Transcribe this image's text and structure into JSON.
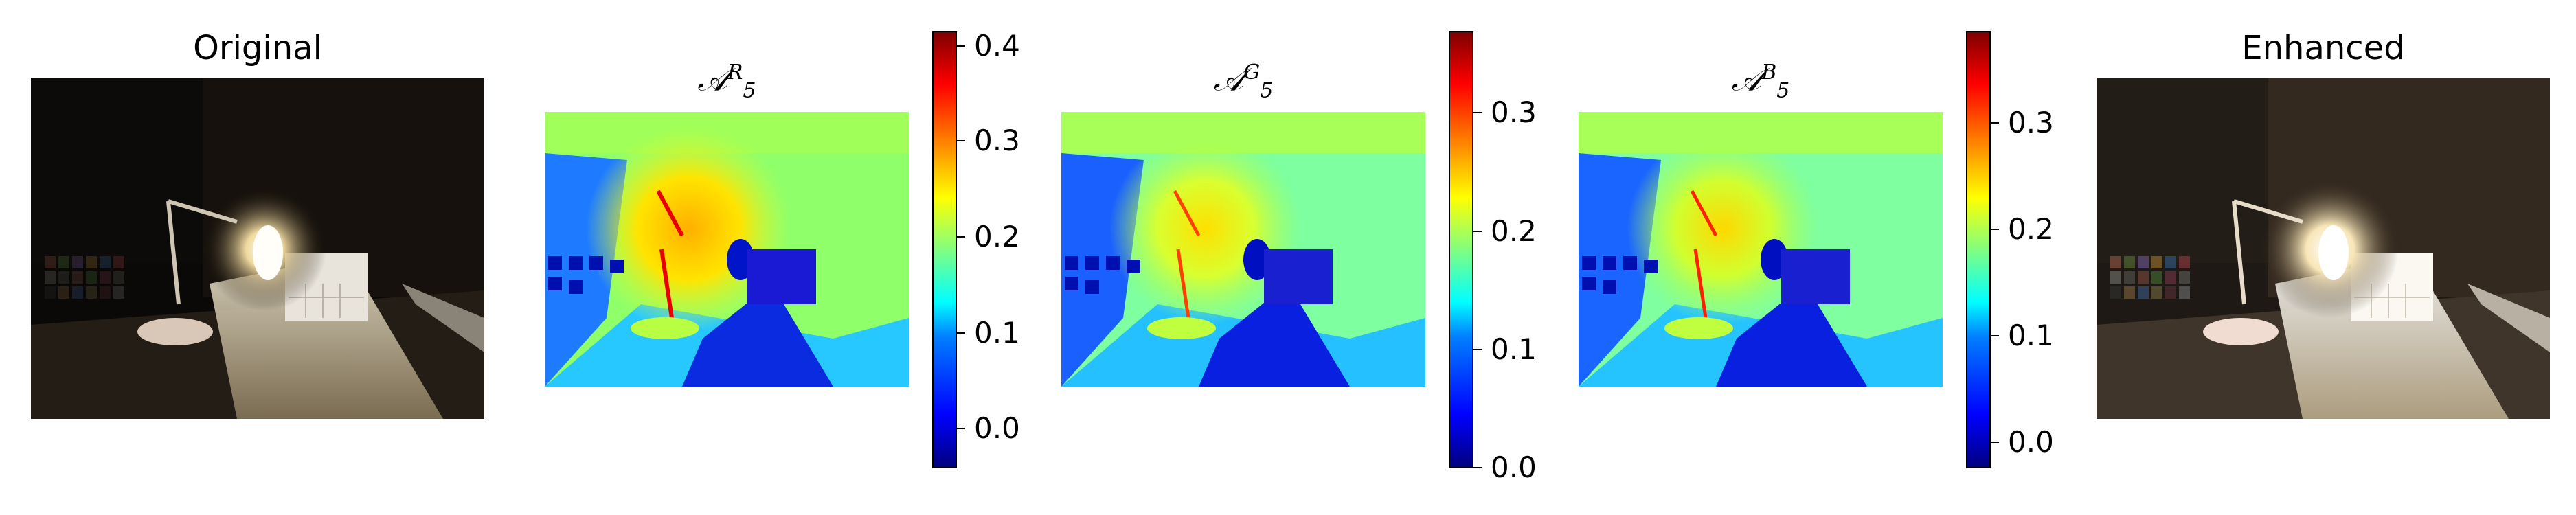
{
  "panels": {
    "original": {
      "title": "Original"
    },
    "map_r": {
      "symbol": "𝒜",
      "sub": "5",
      "sup": "R"
    },
    "map_g": {
      "symbol": "𝒜",
      "sub": "5",
      "sup": "G"
    },
    "map_b": {
      "symbol": "𝒜",
      "sub": "5",
      "sup": "B"
    },
    "enhanced": {
      "title": "Enhanced"
    }
  },
  "colorbars": {
    "r": {
      "ticks": [
        "0.4",
        "0.3",
        "0.2",
        "0.1",
        "0.0"
      ],
      "range": [
        -0.05,
        0.42
      ]
    },
    "g": {
      "ticks": [
        "0.3",
        "0.2",
        "0.1",
        "0.0"
      ],
      "range": [
        0.0,
        0.37
      ]
    },
    "b": {
      "ticks": [
        "0.3",
        "0.2",
        "0.1",
        "0.0"
      ],
      "range": [
        -0.03,
        0.38
      ]
    }
  },
  "colormap": "jet"
}
